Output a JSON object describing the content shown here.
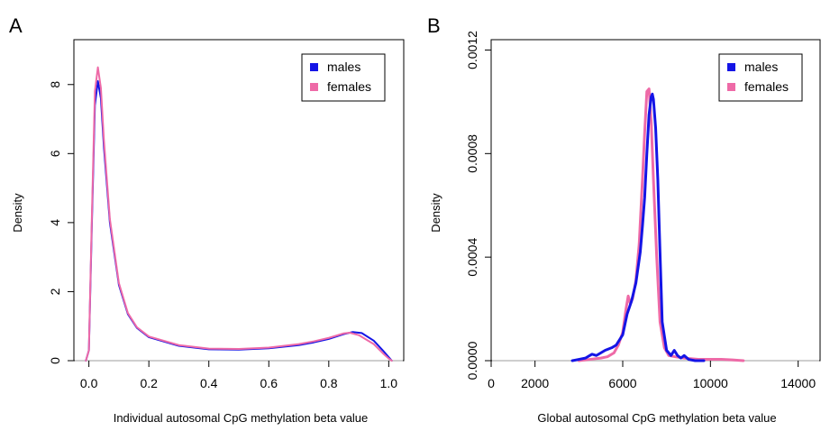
{
  "panels": [
    {
      "panel_label": "A",
      "xlabel": "Individual autosomal CpG methylation beta value",
      "ylabel": "Density",
      "x_ticks": [
        0.0,
        0.2,
        0.4,
        0.6,
        0.8,
        1.0
      ],
      "x_tick_labels": [
        "0.0",
        "0.2",
        "0.4",
        "0.6",
        "0.8",
        "1.0"
      ],
      "y_ticks": [
        0,
        2,
        4,
        6,
        8
      ],
      "y_tick_labels": [
        "0",
        "2",
        "4",
        "6",
        "8"
      ],
      "legend": [
        {
          "label": "males",
          "color": "#1414e6"
        },
        {
          "label": "females",
          "color": "#ee6aa7"
        }
      ]
    },
    {
      "panel_label": "B",
      "xlabel": "Global autosomal CpG methylation beta value",
      "ylabel": "Density",
      "x_ticks": [
        0,
        2000,
        6000,
        10000,
        14000
      ],
      "x_tick_labels": [
        "0",
        "2000",
        "6000",
        "10000",
        "14000"
      ],
      "y_ticks": [
        0.0,
        0.0004,
        0.0008,
        0.0012
      ],
      "y_tick_labels": [
        "0.0000",
        "0.0004",
        "0.0008",
        "0.0012"
      ],
      "legend": [
        {
          "label": "males",
          "color": "#1414e6"
        },
        {
          "label": "females",
          "color": "#ee6aa7"
        }
      ]
    }
  ],
  "chart_data": [
    {
      "type": "line",
      "title": "",
      "xlabel": "Individual autosomal CpG methylation beta value",
      "ylabel": "Density",
      "xlim": [
        -0.05,
        1.05
      ],
      "ylim": [
        0,
        9.3
      ],
      "baseline_color": "#bebebe",
      "legend_position": "top-right",
      "grid": false,
      "series": [
        {
          "name": "males",
          "color": "#1414e6",
          "x": [
            -0.01,
            0.0,
            0.01,
            0.02,
            0.03,
            0.04,
            0.05,
            0.07,
            0.1,
            0.13,
            0.16,
            0.2,
            0.3,
            0.4,
            0.5,
            0.6,
            0.7,
            0.75,
            0.8,
            0.85,
            0.88,
            0.91,
            0.95,
            0.98,
            1.0,
            1.01
          ],
          "y": [
            0.0,
            0.3,
            4.0,
            7.4,
            8.1,
            7.6,
            6.2,
            4.0,
            2.2,
            1.35,
            0.95,
            0.68,
            0.43,
            0.33,
            0.32,
            0.36,
            0.45,
            0.53,
            0.63,
            0.77,
            0.83,
            0.8,
            0.58,
            0.3,
            0.1,
            0.0
          ]
        },
        {
          "name": "females",
          "color": "#ee6aa7",
          "x": [
            -0.01,
            0.0,
            0.01,
            0.02,
            0.03,
            0.04,
            0.05,
            0.07,
            0.1,
            0.13,
            0.16,
            0.2,
            0.3,
            0.4,
            0.5,
            0.6,
            0.7,
            0.75,
            0.8,
            0.85,
            0.87,
            0.9,
            0.95,
            0.98,
            1.0,
            1.01
          ],
          "y": [
            0.0,
            0.3,
            4.2,
            7.8,
            8.5,
            7.9,
            6.4,
            4.1,
            2.25,
            1.38,
            0.97,
            0.7,
            0.45,
            0.35,
            0.34,
            0.38,
            0.48,
            0.56,
            0.66,
            0.79,
            0.81,
            0.74,
            0.48,
            0.22,
            0.06,
            0.0
          ]
        }
      ]
    },
    {
      "type": "line",
      "title": "",
      "xlabel": "Global autosomal CpG methylation beta value",
      "ylabel": "Density",
      "xlim": [
        0,
        15000
      ],
      "ylim": [
        0,
        0.00124
      ],
      "baseline_color": "#bebebe",
      "legend_position": "top-right",
      "grid": false,
      "series": [
        {
          "name": "females",
          "color": "#ee6aa7",
          "x": [
            4000,
            4500,
            5000,
            5300,
            5600,
            5800,
            6000,
            6150,
            6250,
            6350,
            6450,
            6600,
            6750,
            6900,
            7000,
            7100,
            7200,
            7300,
            7400,
            7550,
            7700,
            7900,
            8100,
            8400,
            8800,
            9500,
            10000,
            10500,
            11000,
            11500
          ],
          "y": [
            0.0,
            5e-06,
            1e-05,
            1.5e-05,
            3e-05,
            6e-05,
            0.00011,
            0.0002,
            0.00025,
            0.00022,
            0.00024,
            0.00031,
            0.00045,
            0.0007,
            0.00088,
            0.00104,
            0.00105,
            0.00092,
            0.0007,
            0.0004,
            0.00015,
            5e-05,
            2e-05,
            1.5e-05,
            1e-05,
            5e-06,
            5e-06,
            5e-06,
            3e-06,
            0.0
          ]
        },
        {
          "name": "males",
          "color": "#1414e6",
          "x": [
            3700,
            4000,
            4300,
            4600,
            4800,
            5000,
            5200,
            5500,
            5700,
            6000,
            6200,
            6400,
            6600,
            6800,
            6900,
            7000,
            7100,
            7200,
            7300,
            7350,
            7400,
            7500,
            7600,
            7700,
            7800,
            8000,
            8200,
            8350,
            8500,
            8650,
            8800,
            9000,
            9300,
            9700
          ],
          "y": [
            0.0,
            5e-06,
            1e-05,
            2.5e-05,
            2e-05,
            3e-05,
            4e-05,
            5e-05,
            6e-05,
            0.0001,
            0.00018,
            0.00023,
            0.0003,
            0.00042,
            0.00052,
            0.00063,
            0.0008,
            0.00095,
            0.00102,
            0.00103,
            0.00101,
            0.0009,
            0.0007,
            0.00042,
            0.00015,
            4e-05,
            2e-05,
            4e-05,
            2e-05,
            1e-05,
            2e-05,
            5e-06,
            0.0,
            0.0
          ]
        }
      ]
    }
  ]
}
